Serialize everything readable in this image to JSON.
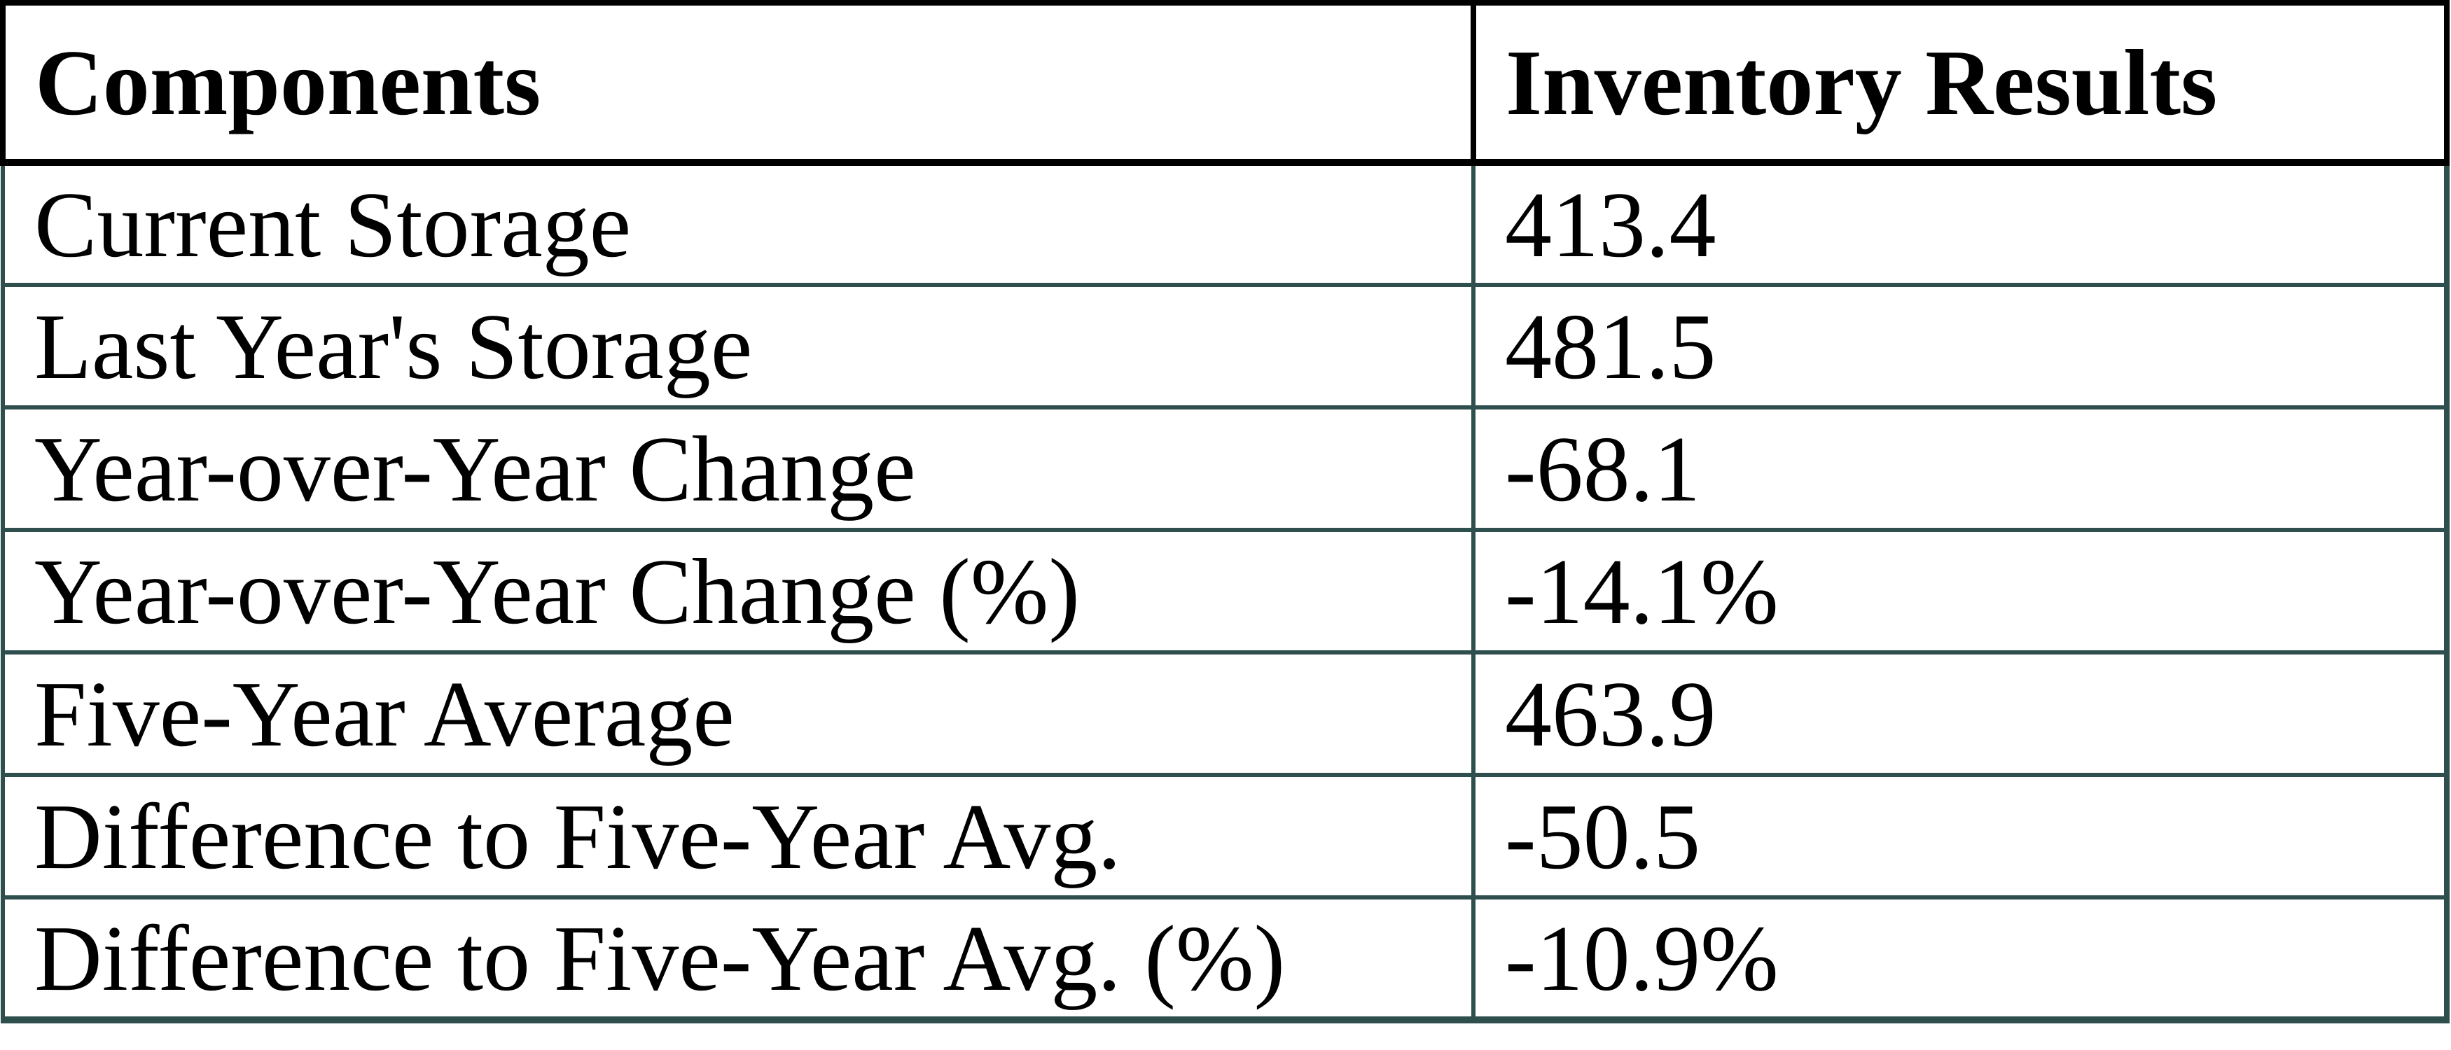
{
  "table": {
    "columns": [
      "Components",
      "Inventory Results"
    ],
    "rows": [
      {
        "component": "Current Storage",
        "value": "413.4"
      },
      {
        "component": "Last Year's Storage",
        "value": "481.5"
      },
      {
        "component": "Year-over-Year Change",
        "value": "-68.1"
      },
      {
        "component": "Year-over-Year Change (%)",
        "value": "-14.1%"
      },
      {
        "component": "Five-Year Average",
        "value": "463.9"
      },
      {
        "component": "Difference to Five-Year Avg.",
        "value": "-50.5"
      },
      {
        "component": "Difference to Five-Year Avg. (%)",
        "value": "-10.9%"
      }
    ]
  },
  "chart_data": {
    "type": "table",
    "title": "",
    "columns": [
      "Components",
      "Inventory Results"
    ],
    "rows": [
      [
        "Current Storage",
        413.4
      ],
      [
        "Last Year's Storage",
        481.5
      ],
      [
        "Year-over-Year Change",
        -68.1
      ],
      [
        "Year-over-Year Change (%)",
        "-14.1%"
      ],
      [
        "Five-Year Average",
        463.9
      ],
      [
        "Difference to Five-Year Avg.",
        -50.5
      ],
      [
        "Difference to Five-Year Avg. (%)",
        "-10.9%"
      ]
    ]
  },
  "colors": {
    "header_border": "#000000",
    "body_border": "#2f4f4f",
    "text": "#000000",
    "background": "#ffffff"
  }
}
